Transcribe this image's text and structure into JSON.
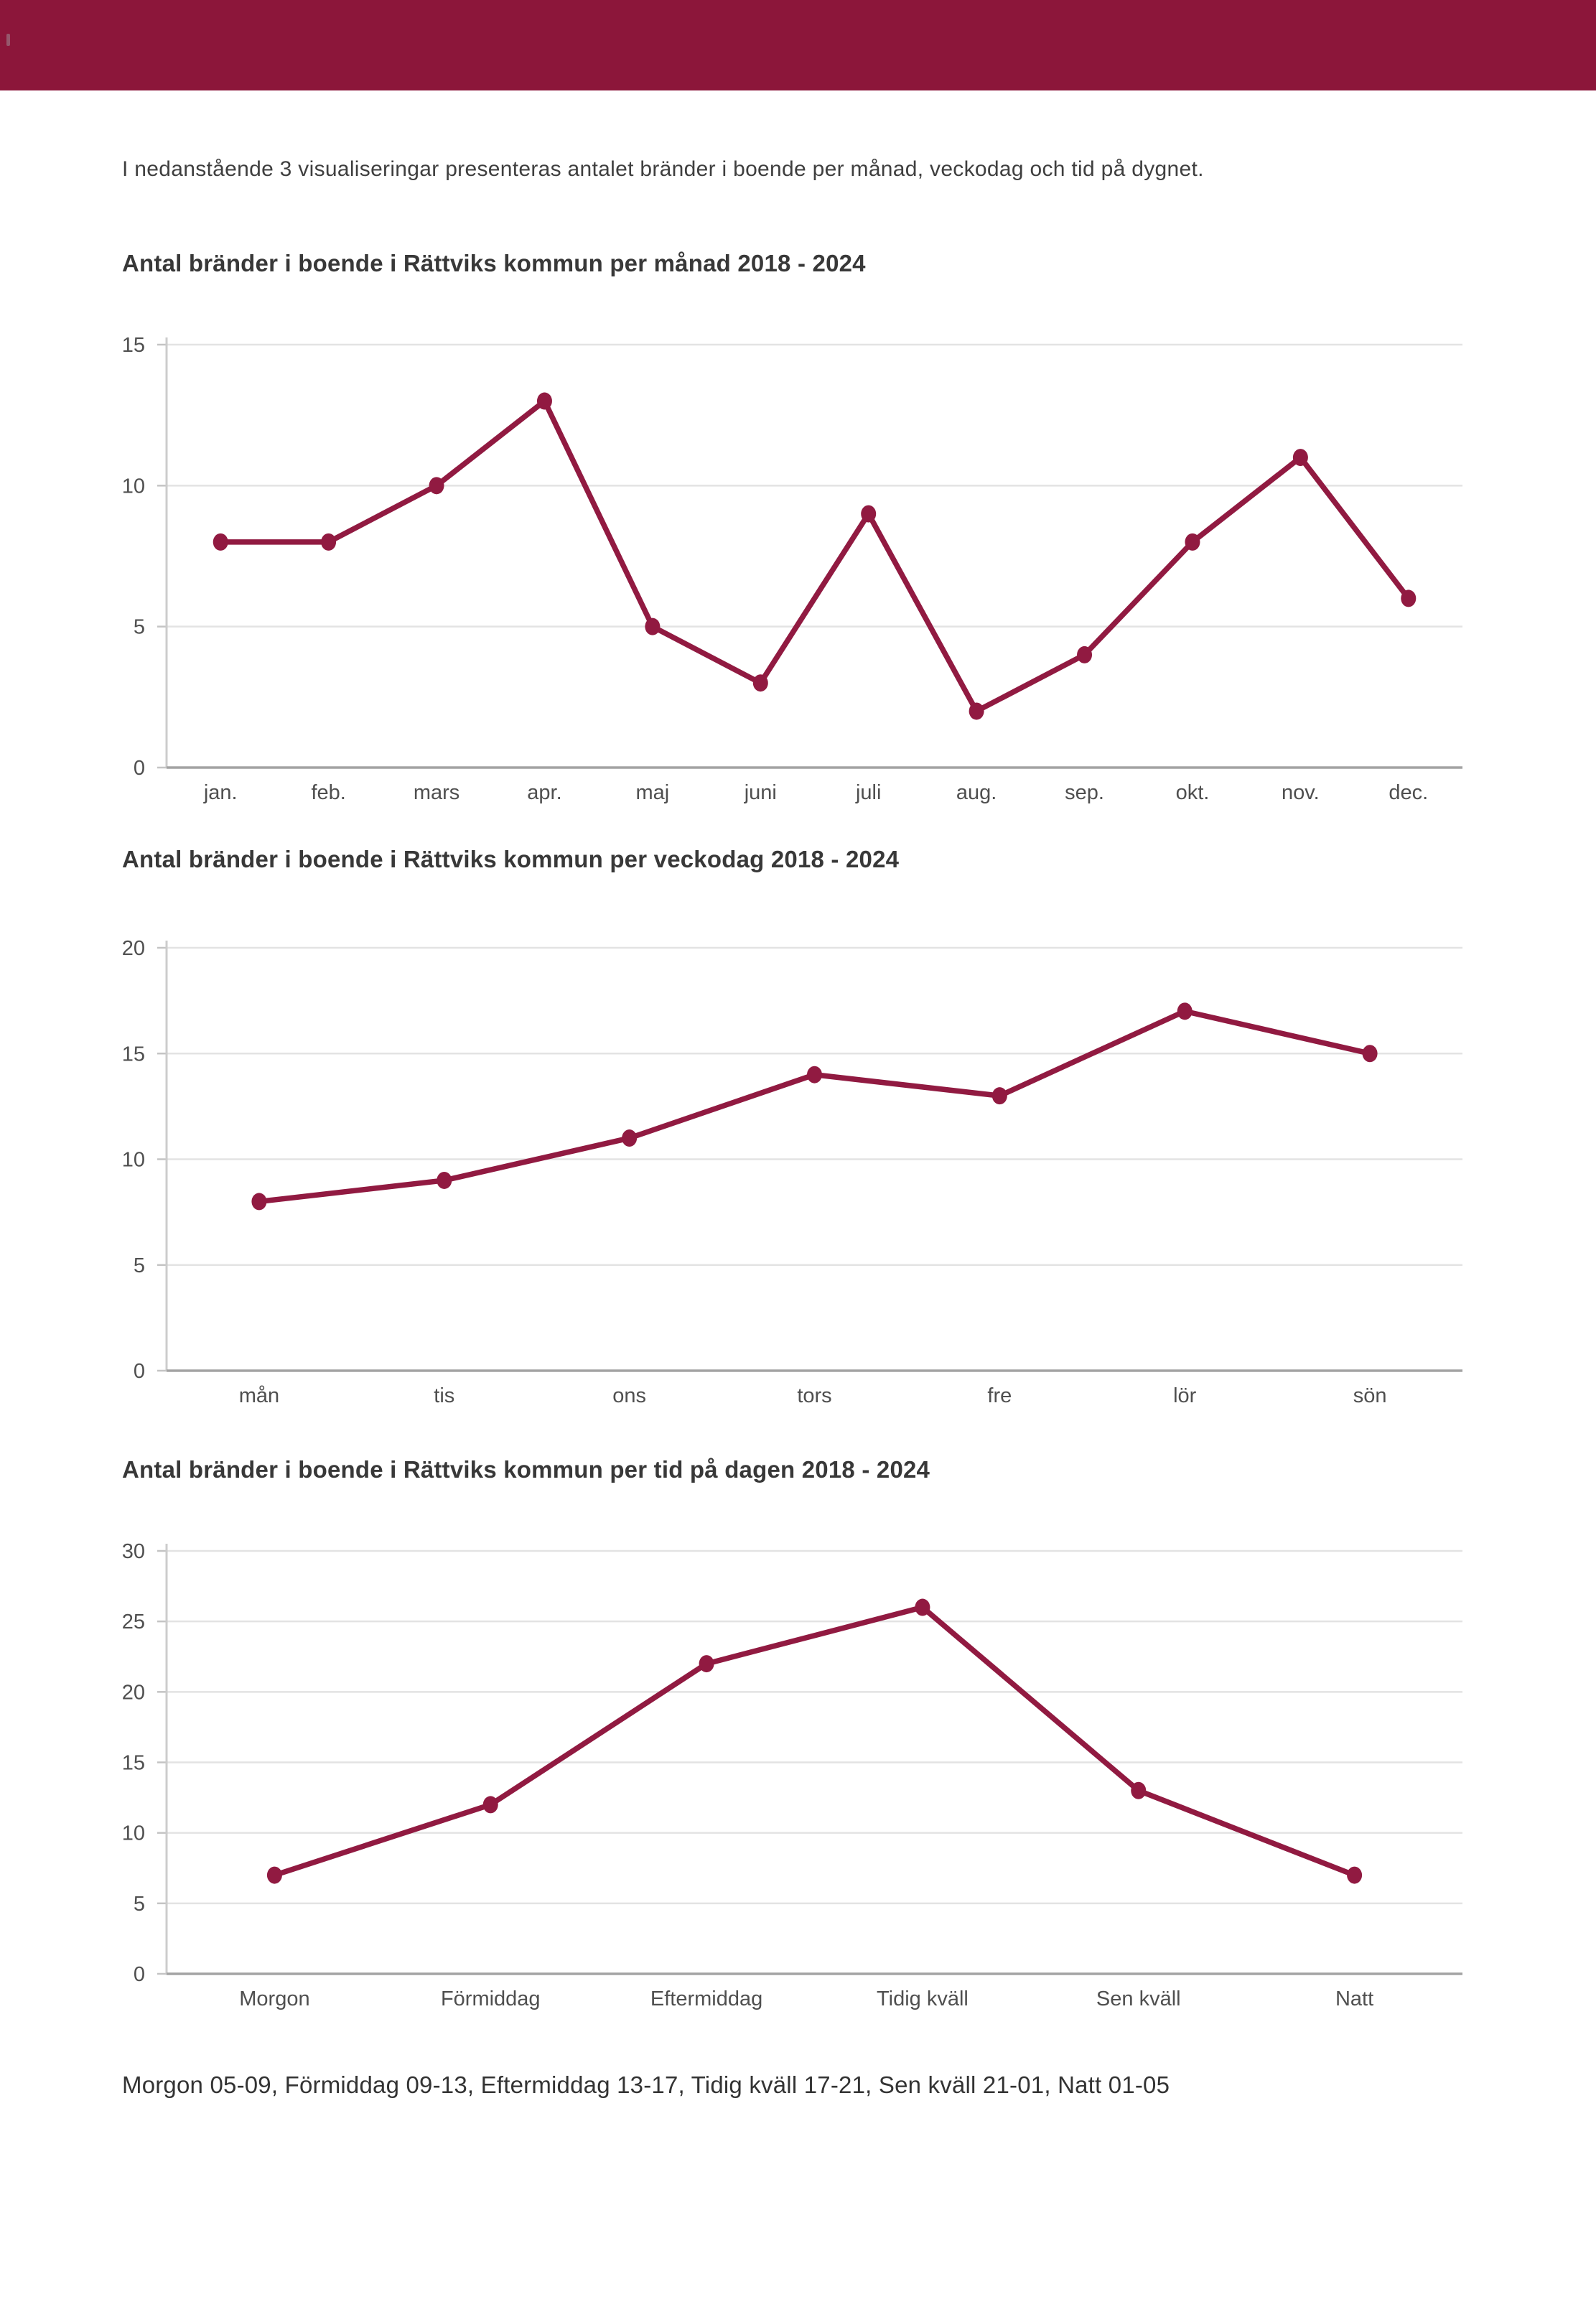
{
  "page": {
    "intro": "I nedanstående 3 visualiseringar presenteras antalet bränder i boende per månad, veckodag och tid på dygnet.",
    "footnote": "Morgon 05-09, Förmiddag 09-13, Eftermiddag 13-17, Tidig kväll 17-21, Sen kväll 21-01, Natt 01-05"
  },
  "colors": {
    "header_bar": "#8c163a",
    "line": "#911a41",
    "marker": "#911a41",
    "gridline": "#e3e3e3",
    "axis_x": "#a3a3a3",
    "axis_y": "#cccccc",
    "tick": "#c4c4c4",
    "tick_label": "#4f4f4f",
    "category_label": "#4f4f4f"
  },
  "chart_data": [
    {
      "type": "line",
      "title": "Antal bränder i boende i Rättviks kommun per månad 2018 - 2024",
      "categories": [
        "jan.",
        "feb.",
        "mars",
        "apr.",
        "maj",
        "juni",
        "juli",
        "aug.",
        "sep.",
        "okt.",
        "nov.",
        "dec."
      ],
      "values": [
        8,
        8,
        10,
        13,
        5,
        3,
        9,
        2,
        4,
        8,
        11,
        6
      ],
      "xlabel": "",
      "ylabel": "",
      "ylim": [
        0,
        15
      ],
      "yticks": [
        0,
        5,
        10,
        15
      ],
      "grid": true,
      "legend": "none"
    },
    {
      "type": "line",
      "title": "Antal bränder i boende i Rättviks kommun per veckodag 2018 - 2024",
      "categories": [
        "mån",
        "tis",
        "ons",
        "tors",
        "fre",
        "lör",
        "sön"
      ],
      "values": [
        8,
        9,
        11,
        14,
        13,
        17,
        15
      ],
      "xlabel": "",
      "ylabel": "",
      "ylim": [
        0,
        20
      ],
      "yticks": [
        0,
        5,
        10,
        15,
        20
      ],
      "grid": true,
      "legend": "none"
    },
    {
      "type": "line",
      "title": "Antal bränder i boende i Rättviks kommun per tid på dagen 2018 - 2024",
      "categories": [
        "Morgon",
        "Förmiddag",
        "Eftermiddag",
        "Tidig kväll",
        "Sen kväll",
        "Natt"
      ],
      "values": [
        7,
        12,
        22,
        26,
        13,
        7
      ],
      "xlabel": "",
      "ylabel": "",
      "ylim": [
        0,
        30
      ],
      "yticks": [
        0,
        5,
        10,
        15,
        20,
        25,
        30
      ],
      "grid": true,
      "legend": "none"
    }
  ]
}
